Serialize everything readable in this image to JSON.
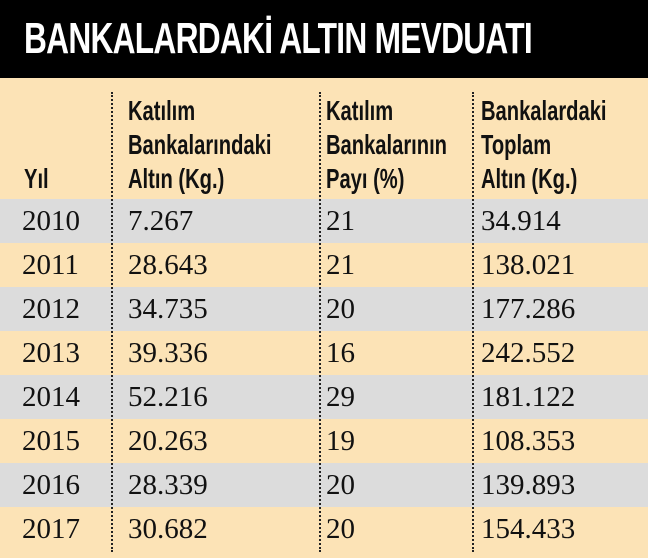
{
  "header": {
    "title": "BANKALARDAKİ ALTIN MEVDUATI"
  },
  "table": {
    "columns": [
      "Yıl",
      "Katılım\nBankalarındaki\nAltın (Kg.)",
      "Katılım\nBankalarının\nPayı (%)",
      "Bankalardaki\nToplam\nAltın (Kg.)"
    ],
    "rows": [
      [
        "2010",
        "7.267",
        "21",
        "34.914"
      ],
      [
        "2011",
        "28.643",
        "21",
        "138.021"
      ],
      [
        "2012",
        "34.735",
        "20",
        "177.286"
      ],
      [
        "2013",
        "39.336",
        "16",
        "242.552"
      ],
      [
        "2014",
        "52.216",
        "29",
        "181.122"
      ],
      [
        "2015",
        "20.263",
        "19",
        "108.353"
      ],
      [
        "2016",
        "28.339",
        "20",
        "139.893"
      ],
      [
        "2017",
        "30.682",
        "20",
        "154.433"
      ]
    ]
  }
}
